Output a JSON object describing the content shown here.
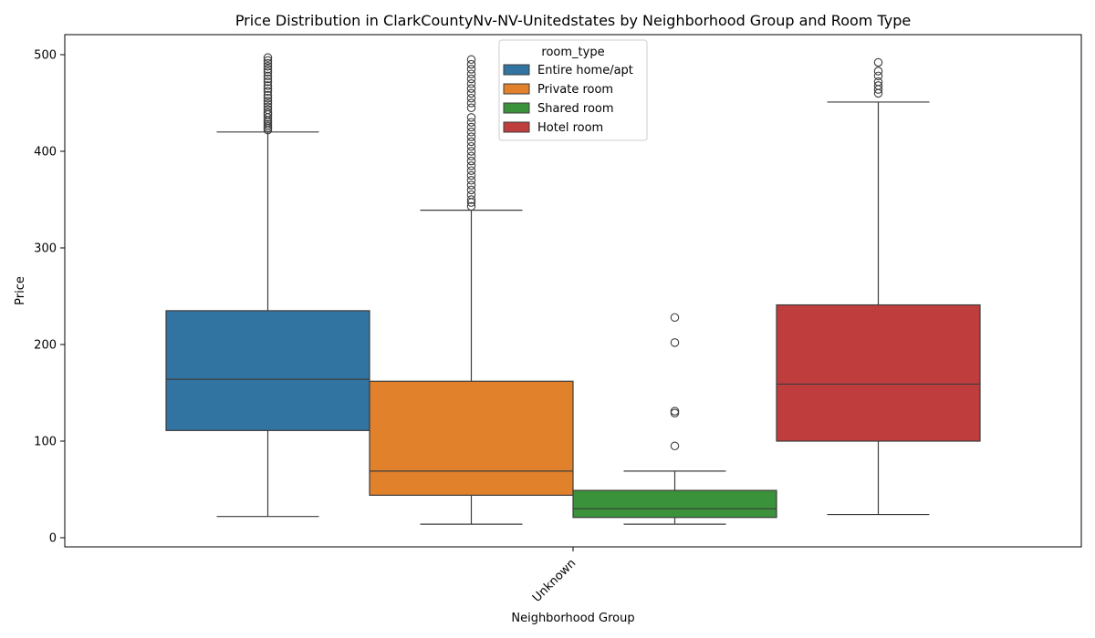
{
  "chart_data": {
    "type": "box",
    "title": "Price Distribution in ClarkCountyNv-NV-Unitedstates by Neighborhood Group and Room Type",
    "xlabel": "Neighborhood Group",
    "ylabel": "Price",
    "categories": [
      "Unknown"
    ],
    "ylim": [
      -10,
      520
    ],
    "yticks": [
      0,
      100,
      200,
      300,
      400,
      500
    ],
    "legend": {
      "title": "room_type",
      "placement": "top-center"
    },
    "series": [
      {
        "name": "Entire home/apt",
        "color": "#3274a1",
        "whisker_low": 22,
        "q1": 111,
        "median": 164,
        "q3": 235,
        "whisker_high": 420,
        "outliers": [
          422,
          424,
          426,
          428,
          430,
          432,
          435,
          438,
          440,
          443,
          446,
          449,
          452,
          455,
          458,
          462,
          465,
          468,
          472,
          475,
          478,
          482,
          485,
          488,
          491,
          494,
          497
        ]
      },
      {
        "name": "Private room",
        "color": "#e1812c",
        "whisker_low": 14,
        "q1": 44,
        "median": 69,
        "q3": 162,
        "whisker_high": 339,
        "outliers": [
          343,
          347,
          350,
          355,
          360,
          365,
          370,
          375,
          380,
          385,
          390,
          395,
          400,
          405,
          410,
          415,
          420,
          425,
          430,
          435,
          445,
          450,
          455,
          460,
          465,
          470,
          475,
          480,
          485,
          490,
          495
        ]
      },
      {
        "name": "Shared room",
        "color": "#3a923a",
        "whisker_low": 14,
        "q1": 21,
        "median": 30,
        "q3": 49,
        "whisker_high": 69,
        "outliers": [
          95,
          129,
          131,
          202,
          228
        ]
      },
      {
        "name": "Hotel room",
        "color": "#c03d3e",
        "whisker_low": 24,
        "q1": 100,
        "median": 159,
        "q3": 241,
        "whisker_high": 451,
        "outliers": [
          460,
          464,
          468,
          472,
          478,
          483,
          492
        ]
      }
    ]
  }
}
